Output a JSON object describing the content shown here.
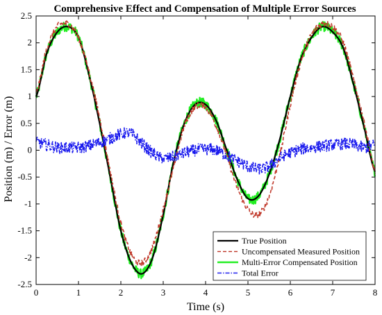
{
  "chart_data": {
    "type": "line",
    "title": "Comprehensive Effect and Compensation of Multiple Error Sources",
    "xlabel": "Time (s)",
    "ylabel": "Position (m) / Error (m)",
    "xlim": [
      0,
      8
    ],
    "ylim": [
      -2.5,
      2.5
    ],
    "xticks": [
      0,
      1,
      2,
      3,
      4,
      5,
      6,
      7,
      8
    ],
    "xtick_labels": [
      "0",
      "1",
      "2",
      "3",
      "4",
      "5",
      "6",
      "7",
      "8"
    ],
    "yticks": [
      -2.5,
      -2,
      -1.5,
      -1,
      -0.5,
      0,
      0.5,
      1,
      1.5,
      2,
      2.5
    ],
    "ytick_labels": [
      "-2.5",
      "-2",
      "-1.5",
      "-1",
      "-0.5",
      "0",
      "0.5",
      "1",
      "1.5",
      "2",
      "2.5"
    ],
    "grid": false,
    "legend_position": "bottom-right",
    "series": [
      {
        "name": "True Position",
        "color": "#000000",
        "style": "solid",
        "x": [
          0,
          0.25,
          0.5,
          0.75,
          1.0,
          1.25,
          1.5,
          1.75,
          2.0,
          2.25,
          2.5,
          2.75,
          3.0,
          3.25,
          3.5,
          3.75,
          4.0,
          4.25,
          4.5,
          4.75,
          5.0,
          5.25,
          5.5,
          5.75,
          6.0,
          6.25,
          6.5,
          6.75,
          7.0,
          7.25,
          7.5,
          7.75,
          8.0
        ],
        "y": [
          1.0,
          1.8,
          2.2,
          2.3,
          2.1,
          1.4,
          0.5,
          -0.5,
          -1.5,
          -2.1,
          -2.3,
          -2.0,
          -1.2,
          -0.2,
          0.5,
          0.85,
          0.85,
          0.55,
          0.0,
          -0.55,
          -0.9,
          -0.85,
          -0.45,
          0.2,
          1.0,
          1.7,
          2.1,
          2.3,
          2.2,
          1.9,
          1.2,
          0.4,
          -0.4
        ]
      },
      {
        "name": "Uncompensated Measured Position",
        "color": "#c0392b",
        "style": "dashed",
        "x": [
          0,
          0.25,
          0.5,
          0.75,
          1.0,
          1.25,
          1.5,
          1.75,
          2.0,
          2.25,
          2.5,
          2.75,
          3.0,
          3.25,
          3.5,
          3.75,
          4.0,
          4.25,
          4.5,
          4.75,
          5.0,
          5.25,
          5.5,
          5.75,
          6.0,
          6.25,
          6.5,
          6.75,
          7.0,
          7.25,
          7.5,
          7.75,
          8.0
        ],
        "y": [
          1.05,
          1.88,
          2.3,
          2.35,
          2.1,
          1.45,
          0.6,
          -0.4,
          -1.35,
          -1.95,
          -2.1,
          -1.8,
          -1.1,
          -0.3,
          0.45,
          0.8,
          0.8,
          0.45,
          -0.1,
          -0.7,
          -1.1,
          -1.2,
          -0.85,
          -0.1,
          0.85,
          1.65,
          2.15,
          2.35,
          2.3,
          2.0,
          1.3,
          0.5,
          -0.4
        ]
      },
      {
        "name": "Multi-Error Compensated Position",
        "color": "#22ee22",
        "style": "solid",
        "x": [
          0,
          0.25,
          0.5,
          0.75,
          1.0,
          1.25,
          1.5,
          1.75,
          2.0,
          2.25,
          2.5,
          2.75,
          3.0,
          3.25,
          3.5,
          3.75,
          4.0,
          4.25,
          4.5,
          4.75,
          5.0,
          5.25,
          5.5,
          5.75,
          6.0,
          6.25,
          6.5,
          6.75,
          7.0,
          7.25,
          7.5,
          7.75,
          8.0
        ],
        "y": [
          1.0,
          1.8,
          2.2,
          2.3,
          2.1,
          1.4,
          0.5,
          -0.5,
          -1.5,
          -2.1,
          -2.3,
          -2.0,
          -1.2,
          -0.2,
          0.5,
          0.85,
          0.85,
          0.55,
          0.0,
          -0.55,
          -0.9,
          -0.85,
          -0.45,
          0.2,
          1.0,
          1.7,
          2.1,
          2.3,
          2.2,
          1.9,
          1.2,
          0.4,
          -0.4
        ]
      },
      {
        "name": "Total Error",
        "color": "#1a1aee",
        "style": "dashdot",
        "x": [
          0,
          0.25,
          0.5,
          0.75,
          1.0,
          1.25,
          1.5,
          1.75,
          2.0,
          2.25,
          2.5,
          2.75,
          3.0,
          3.25,
          3.5,
          3.75,
          4.0,
          4.25,
          4.5,
          4.75,
          5.0,
          5.25,
          5.5,
          5.75,
          6.0,
          6.25,
          6.5,
          6.75,
          7.0,
          7.25,
          7.5,
          7.75,
          8.0
        ],
        "y": [
          0.15,
          0.1,
          0.05,
          0.05,
          0.05,
          0.08,
          0.15,
          0.22,
          0.3,
          0.3,
          0.12,
          -0.05,
          -0.15,
          -0.12,
          -0.05,
          0.0,
          0.02,
          0.0,
          -0.1,
          -0.2,
          -0.3,
          -0.35,
          -0.3,
          -0.15,
          -0.05,
          0.02,
          0.05,
          0.08,
          0.1,
          0.12,
          0.1,
          0.05,
          0.1
        ]
      }
    ]
  }
}
